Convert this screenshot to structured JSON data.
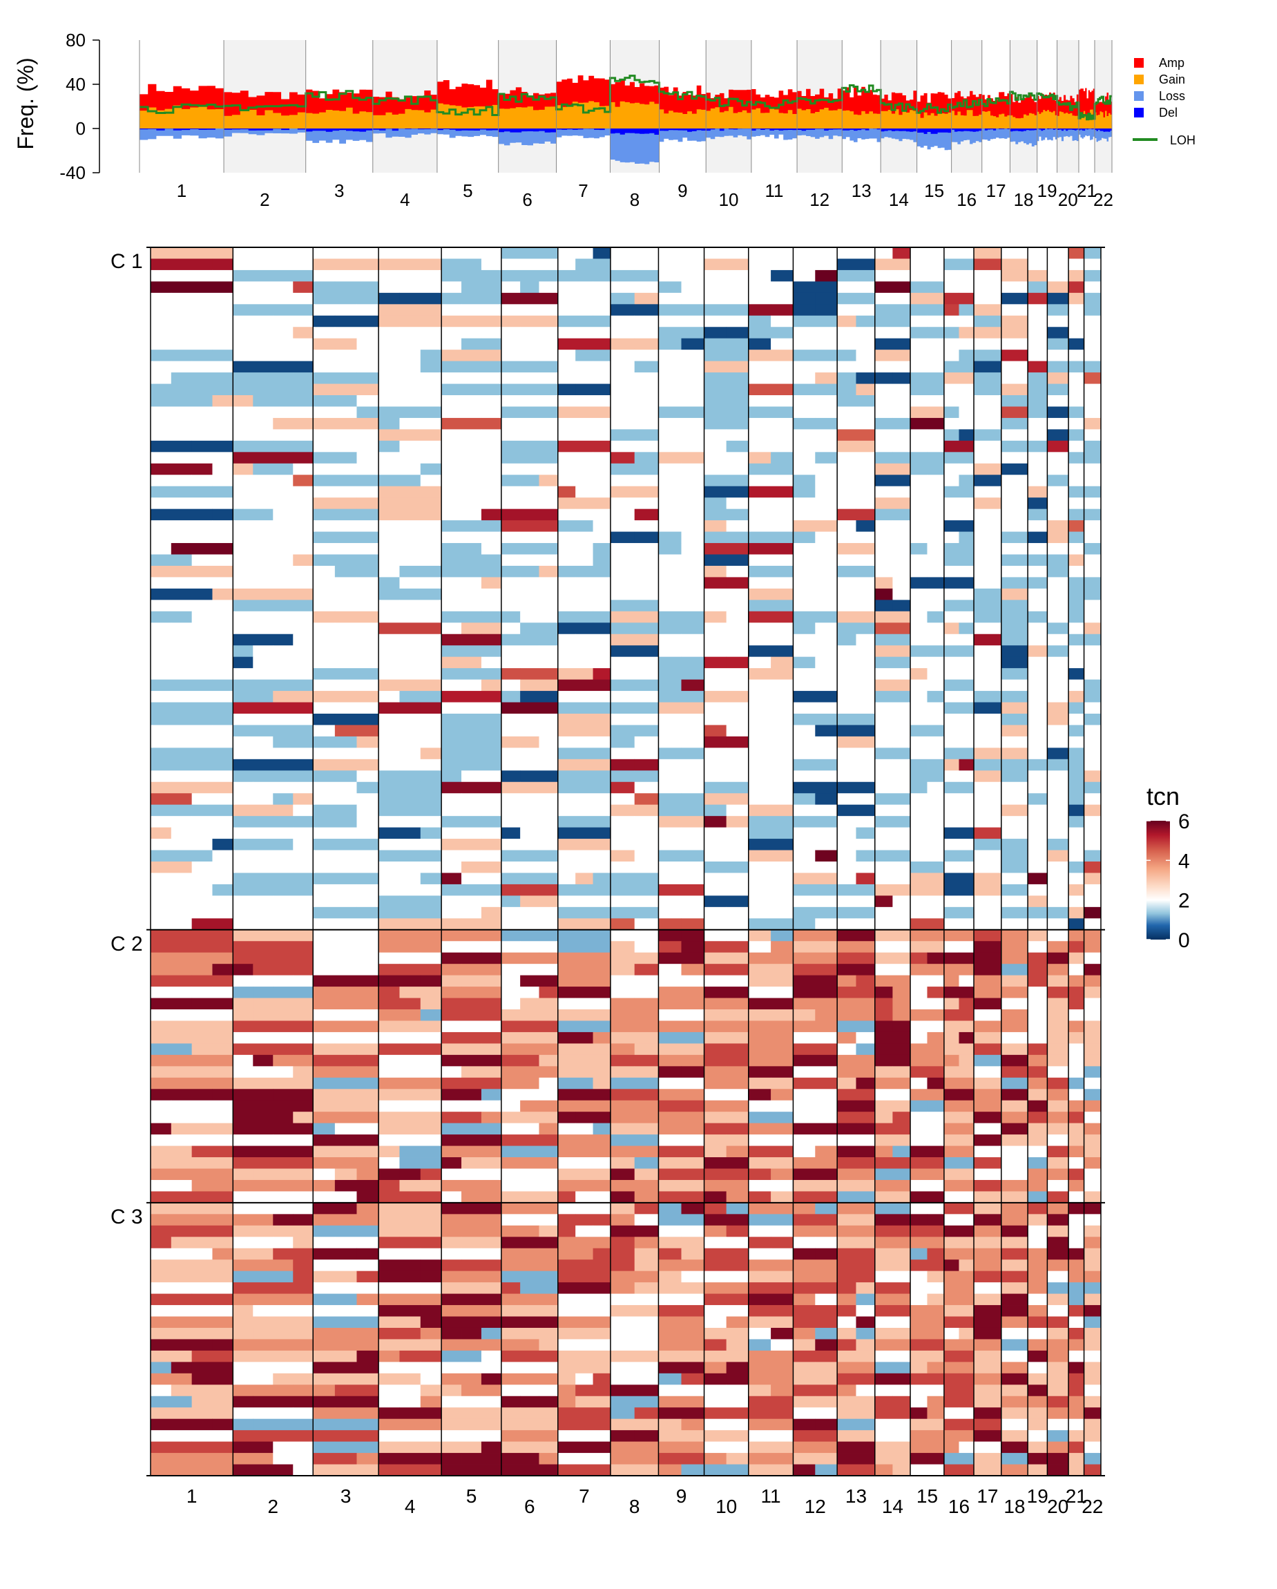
{
  "chart_data": [
    {
      "type": "area",
      "panel": "frequency",
      "ylabel": "Freq. (%)",
      "ylim": [
        -40,
        80
      ],
      "yticks": [
        "80",
        "40",
        "0",
        "-40"
      ],
      "grid": false,
      "legend_position": "right",
      "chromosomes": [
        "1",
        "2",
        "3",
        "4",
        "5",
        "6",
        "7",
        "8",
        "9",
        "10",
        "11",
        "12",
        "13",
        "14",
        "15",
        "16",
        "17",
        "18",
        "19",
        "20",
        "21",
        "22"
      ],
      "series": [
        {
          "name": "Amp",
          "color": "#ff0000",
          "values": [
            36,
            31,
            31,
            30,
            40,
            33,
            44,
            40,
            34,
            31,
            33,
            32,
            33,
            30,
            28,
            30,
            28,
            27,
            30,
            28,
            32,
            28
          ]
        },
        {
          "name": "Gain",
          "color": "#ffa500",
          "values": [
            18,
            14,
            16,
            15,
            20,
            17,
            22,
            22,
            15,
            17,
            16,
            16,
            15,
            15,
            12,
            14,
            13,
            12,
            14,
            14,
            15,
            13
          ]
        },
        {
          "name": "Loss",
          "color": "#6495ed",
          "values": [
            -8,
            -6,
            -12,
            -6,
            -7,
            -14,
            -7,
            -30,
            -10,
            -8,
            -8,
            -8,
            -10,
            -10,
            -18,
            -12,
            -9,
            -14,
            -9,
            -9,
            -8,
            -10
          ]
        },
        {
          "name": "Del",
          "color": "#0000ff",
          "values": [
            -1,
            -1,
            -2,
            -1,
            -1,
            -3,
            -1,
            -5,
            -2,
            -1,
            -1,
            -1,
            -1,
            -2,
            -4,
            -2,
            -1,
            -2,
            -1,
            -1,
            -1,
            -2
          ]
        },
        {
          "name": "LOH",
          "color": "#228b22",
          "values": [
            18,
            20,
            30,
            26,
            16,
            28,
            18,
            45,
            30,
            24,
            22,
            24,
            36,
            20,
            18,
            22,
            24,
            30,
            28,
            20,
            12,
            26
          ]
        }
      ]
    },
    {
      "type": "heatmap",
      "panel": "copy-number",
      "legend_title": "tcn",
      "color_scale": {
        "min": 0,
        "max": 6,
        "ticks": [
          "6",
          "4",
          "2",
          "0"
        ],
        "colors": [
          "#053061",
          "#2166ac",
          "#92c5de",
          "#ffffff",
          "#fddbc7",
          "#f4a582",
          "#d6604d",
          "#b2182b",
          "#67001f"
        ]
      },
      "chromosomes": [
        "1",
        "2",
        "3",
        "4",
        "5",
        "6",
        "7",
        "8",
        "9",
        "10",
        "11",
        "12",
        "13",
        "14",
        "15",
        "16",
        "17",
        "18",
        "19",
        "20",
        "21",
        "22"
      ],
      "clusters": [
        {
          "label": "C 1",
          "samples": 60,
          "mean_tcn": 2.0
        },
        {
          "label": "C 2",
          "samples": 24,
          "mean_tcn": 3.4
        },
        {
          "label": "C 3",
          "samples": 24,
          "mean_tcn": 3.8
        }
      ]
    }
  ]
}
